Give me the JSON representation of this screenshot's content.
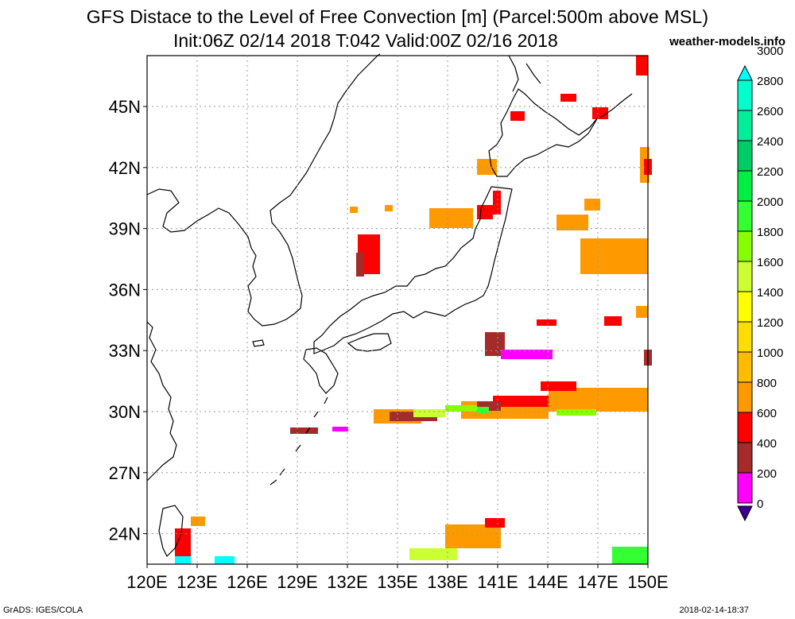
{
  "title_line1": "GFS Distace to the Level of Free Convection [m] (Parcel:500m above MSL)",
  "title_line2": "Init:06Z 02/14 2018 T:042 Valid:00Z 02/16 2018",
  "site": "weather-models.info",
  "footer_left": "GrADS: IGES/COLA",
  "footer_right": "2018-02-14-18:37",
  "map": {
    "lon_range": [
      120,
      150
    ],
    "lat_range": [
      22.5,
      47.5
    ],
    "lon_ticks": [
      "120E",
      "123E",
      "126E",
      "129E",
      "132E",
      "135E",
      "138E",
      "141E",
      "144E",
      "147E",
      "150E"
    ],
    "lat_ticks": [
      "24N",
      "27N",
      "30N",
      "33N",
      "36N",
      "39N",
      "42N",
      "45N"
    ],
    "grid": "dotted"
  },
  "colorbar": {
    "levels": [
      "0",
      "200",
      "400",
      "600",
      "800",
      "1000",
      "1200",
      "1400",
      "1600",
      "1800",
      "2000",
      "2200",
      "2400",
      "2600",
      "2800",
      "3000"
    ],
    "colors": [
      "#3c0090",
      "#ff00ff",
      "#a52a2a",
      "#ff0000",
      "#ff9900",
      "#ffbb00",
      "#ffdd00",
      "#ffff00",
      "#ccff33",
      "#88ff00",
      "#33ff33",
      "#00ee44",
      "#00cc66",
      "#00ee99",
      "#00ffcc",
      "#00ffff"
    ]
  }
}
